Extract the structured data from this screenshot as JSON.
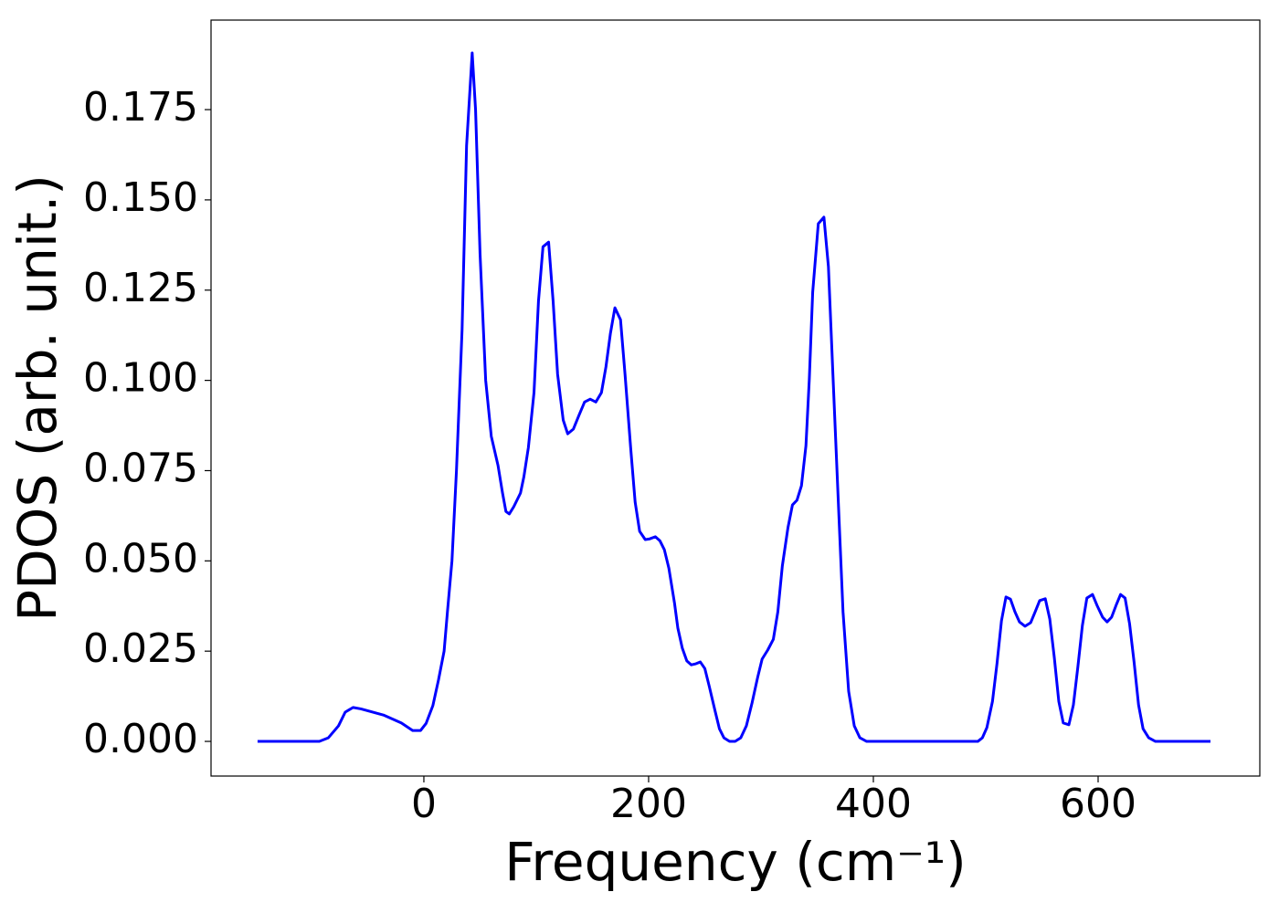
{
  "chart_data": {
    "type": "line",
    "xlabel": "Frequency (cm⁻¹)",
    "ylabel": "PDOS (arb. unit.)",
    "color": "#0000ff",
    "x": [
      -148,
      -93,
      -85,
      -76,
      -70,
      -63,
      -56,
      -36,
      -20,
      -10,
      -3,
      2,
      8,
      13,
      18,
      21,
      25,
      29,
      34,
      38,
      43,
      46,
      50,
      55,
      60,
      66,
      70,
      73,
      76,
      80,
      86,
      89,
      93,
      98,
      102,
      106,
      111,
      115,
      119,
      124,
      128,
      133,
      138,
      143,
      148,
      153,
      158,
      162,
      166,
      170,
      175,
      179,
      184,
      188,
      192,
      197,
      201,
      206,
      210,
      214,
      218,
      223,
      226,
      230,
      234,
      238,
      242,
      246,
      250,
      254,
      259,
      263,
      267,
      272,
      277,
      282,
      287,
      292,
      297,
      301,
      306,
      311,
      315,
      319,
      324,
      328,
      332,
      336,
      340,
      343,
      346,
      351,
      356,
      360,
      364,
      369,
      373,
      378,
      383,
      388,
      394,
      493,
      497,
      501,
      506,
      510,
      514,
      518,
      522,
      526,
      530,
      535,
      540,
      544,
      548,
      553,
      557,
      561,
      565,
      569,
      574,
      578,
      582,
      586,
      590,
      595,
      599,
      604,
      608,
      612,
      616,
      620,
      624,
      628,
      632,
      636,
      640,
      645,
      651,
      700
    ],
    "values": [
      0,
      0,
      0.001,
      0.0043,
      0.0081,
      0.0094,
      0.009,
      0.0073,
      0.0051,
      0.003,
      0.003,
      0.005,
      0.0099,
      0.017,
      0.025,
      0.036,
      0.05,
      0.075,
      0.114,
      0.165,
      0.1907,
      0.175,
      0.135,
      0.1,
      0.0845,
      0.0764,
      0.0688,
      0.0637,
      0.063,
      0.065,
      0.0688,
      0.0733,
      0.0814,
      0.0966,
      0.122,
      0.137,
      0.1383,
      0.122,
      0.1017,
      0.089,
      0.0852,
      0.0865,
      0.0903,
      0.094,
      0.0948,
      0.094,
      0.0966,
      0.1037,
      0.113,
      0.1201,
      0.1168,
      0.1017,
      0.0814,
      0.0663,
      0.0582,
      0.0559,
      0.0561,
      0.0567,
      0.0556,
      0.0531,
      0.048,
      0.0384,
      0.0314,
      0.0258,
      0.0223,
      0.0212,
      0.0215,
      0.022,
      0.0202,
      0.0152,
      0.0086,
      0.0035,
      0.001,
      0,
      0,
      0.001,
      0.0043,
      0.0106,
      0.0177,
      0.0228,
      0.0253,
      0.0283,
      0.0359,
      0.0486,
      0.0592,
      0.0655,
      0.0668,
      0.0708,
      0.0819,
      0.1004,
      0.1244,
      0.1434,
      0.1452,
      0.1315,
      0.1017,
      0.065,
      0.0359,
      0.0139,
      0.0043,
      0.001,
      0,
      0,
      0.001,
      0.0038,
      0.0111,
      0.0215,
      0.0334,
      0.04,
      0.0394,
      0.0359,
      0.0331,
      0.0319,
      0.0329,
      0.0359,
      0.039,
      0.0395,
      0.0339,
      0.0233,
      0.0111,
      0.0051,
      0.0046,
      0.0101,
      0.0207,
      0.0321,
      0.0397,
      0.0407,
      0.0377,
      0.0344,
      0.0331,
      0.0344,
      0.0377,
      0.0407,
      0.0397,
      0.0326,
      0.022,
      0.0101,
      0.0035,
      0.001,
      0,
      0
    ],
    "xlim": [
      -189.4,
      743.9
    ],
    "ylim": [
      -0.0096,
      0.1998
    ],
    "xticks": [
      0,
      200,
      400,
      600
    ],
    "yticks": [
      {
        "value": 0,
        "label": "0.000"
      },
      0.025,
      {
        "value": 0.05,
        "label": "0.050"
      },
      0.075,
      {
        "value": 0.1,
        "label": "0.100"
      },
      0.125,
      {
        "value": 0.15,
        "label": "0.150"
      },
      0.175
    ],
    "grid": false
  }
}
